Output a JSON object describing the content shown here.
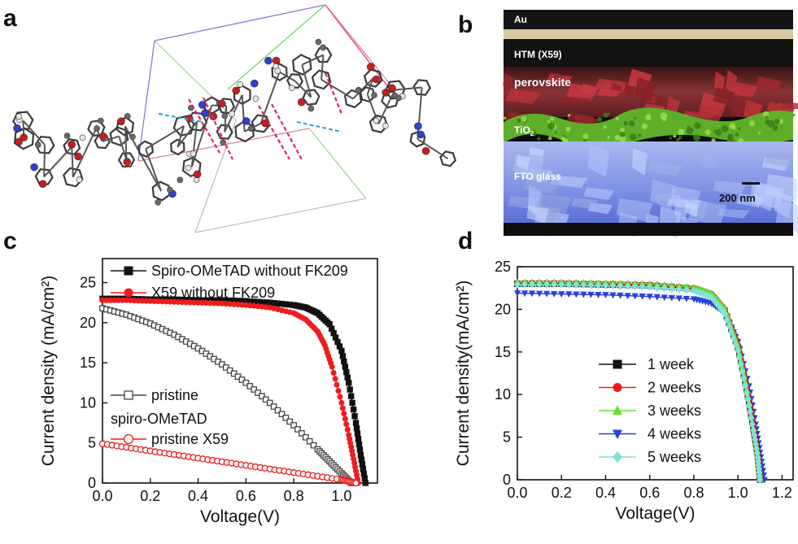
{
  "panels": {
    "a": "a",
    "b": "b",
    "c": "c",
    "d": "d"
  },
  "sem": {
    "layers": [
      "Au",
      "HTM (X59)",
      "perovskite",
      "TiO",
      "FTO glass"
    ],
    "tio_sub": "2",
    "scale_bar": "200 nm"
  },
  "chart_data": [
    {
      "type": "line",
      "panel": "c",
      "xlabel": "Voltage(V)",
      "ylabel": "Current density  (mA/cm²)",
      "xlim": [
        0,
        1.15
      ],
      "ylim": [
        0,
        28
      ],
      "xticks": [
        "0.0",
        "0.2",
        "0.4",
        "0.6",
        "0.8",
        "1.0"
      ],
      "yticks": [
        "0",
        "5",
        "10",
        "15",
        "20",
        "25"
      ],
      "legend_upper": [
        "Spiro-OMeTAD without FK209",
        "X59 without FK209"
      ],
      "legend_lower": [
        "pristine",
        "spiro-OMeTAD",
        "pristine X59"
      ],
      "series": [
        {
          "name": "Spiro-OMeTAD without FK209",
          "color": "#111111",
          "marker": "square-filled",
          "x": [
            0,
            0.1,
            0.2,
            0.3,
            0.4,
            0.5,
            0.6,
            0.7,
            0.8,
            0.85,
            0.9,
            0.95,
            1.0,
            1.03,
            1.06,
            1.08,
            1.1
          ],
          "y": [
            23.0,
            23.0,
            22.9,
            22.9,
            22.8,
            22.8,
            22.7,
            22.5,
            22.2,
            21.9,
            21.2,
            19.8,
            16.5,
            12.5,
            7.5,
            3.5,
            0
          ]
        },
        {
          "name": "X59 without FK209",
          "color": "#ee1c1c",
          "marker": "circle-filled",
          "x": [
            0,
            0.1,
            0.2,
            0.3,
            0.4,
            0.5,
            0.6,
            0.7,
            0.8,
            0.85,
            0.9,
            0.93,
            0.96,
            1.0,
            1.03,
            1.05,
            1.07
          ],
          "y": [
            22.8,
            22.8,
            22.7,
            22.6,
            22.5,
            22.4,
            22.2,
            21.9,
            21.2,
            20.4,
            18.9,
            17.2,
            14.5,
            10.0,
            6.0,
            3.0,
            0
          ]
        },
        {
          "name": "pristine spiro-OMeTAD",
          "color": "#444444",
          "marker": "square-open",
          "x": [
            0,
            0.1,
            0.2,
            0.3,
            0.4,
            0.5,
            0.6,
            0.7,
            0.8,
            0.9,
            0.95,
            1.0,
            1.04
          ],
          "y": [
            21.8,
            21.0,
            19.9,
            18.5,
            16.8,
            14.8,
            12.5,
            10.0,
            7.2,
            4.2,
            2.7,
            1.2,
            0
          ]
        },
        {
          "name": "pristine X59",
          "color": "#ee1c1c",
          "marker": "circle-open",
          "x": [
            0,
            0.2,
            0.4,
            0.6,
            0.8,
            1.0,
            1.06
          ],
          "y": [
            4.9,
            4.0,
            3.1,
            2.2,
            1.3,
            0.4,
            0
          ]
        }
      ]
    },
    {
      "type": "line",
      "panel": "d",
      "xlabel": "Voltage(V)",
      "ylabel": "Current density(mA/cm²)",
      "xlim": [
        0,
        1.25
      ],
      "ylim": [
        0,
        25
      ],
      "xticks": [
        "0.0",
        "0.2",
        "0.4",
        "0.6",
        "0.8",
        "1.0",
        "1.2"
      ],
      "yticks": [
        "0",
        "5",
        "10",
        "15",
        "20",
        "25"
      ],
      "series": [
        {
          "name": "1 week",
          "color": "#111111",
          "marker": "square",
          "x": [
            0,
            0.2,
            0.4,
            0.6,
            0.8,
            0.88,
            0.94,
            1.0,
            1.04,
            1.07,
            1.09,
            1.1
          ],
          "y": [
            23.0,
            23.0,
            22.9,
            22.8,
            22.4,
            21.6,
            19.8,
            15.5,
            10.5,
            6.0,
            2.8,
            0
          ]
        },
        {
          "name": "2 weeks",
          "color": "#ee1c1c",
          "marker": "circle",
          "x": [
            0,
            0.2,
            0.4,
            0.6,
            0.8,
            0.88,
            0.94,
            1.0,
            1.04,
            1.07,
            1.09,
            1.1
          ],
          "y": [
            23.1,
            23.1,
            23.0,
            22.9,
            22.5,
            21.8,
            20.0,
            15.8,
            10.8,
            6.2,
            3.0,
            0
          ]
        },
        {
          "name": "3 weeks",
          "color": "#66e033",
          "marker": "triangle-up",
          "x": [
            0,
            0.2,
            0.4,
            0.6,
            0.8,
            0.88,
            0.94,
            1.0,
            1.04,
            1.07,
            1.09,
            1.1
          ],
          "y": [
            23.2,
            23.2,
            23.1,
            23.0,
            22.6,
            21.9,
            20.1,
            15.7,
            10.6,
            6.0,
            2.9,
            0
          ]
        },
        {
          "name": "4 weeks",
          "color": "#2a3fdc",
          "marker": "triangle-down",
          "x": [
            0,
            0.2,
            0.4,
            0.6,
            0.8,
            0.88,
            0.94,
            1.0,
            1.05,
            1.08,
            1.1,
            1.12
          ],
          "y": [
            21.9,
            21.8,
            21.7,
            21.5,
            21.2,
            20.7,
            19.6,
            16.2,
            11.0,
            6.5,
            3.2,
            0
          ]
        },
        {
          "name": "5 weeks",
          "color": "#7fe3d8",
          "marker": "diamond",
          "x": [
            0,
            0.2,
            0.4,
            0.6,
            0.8,
            0.88,
            0.94,
            1.0,
            1.04,
            1.07,
            1.09,
            1.1
          ],
          "y": [
            22.9,
            22.9,
            22.8,
            22.6,
            22.2,
            21.4,
            19.5,
            15.2,
            10.2,
            5.8,
            2.6,
            0
          ]
        }
      ]
    }
  ]
}
